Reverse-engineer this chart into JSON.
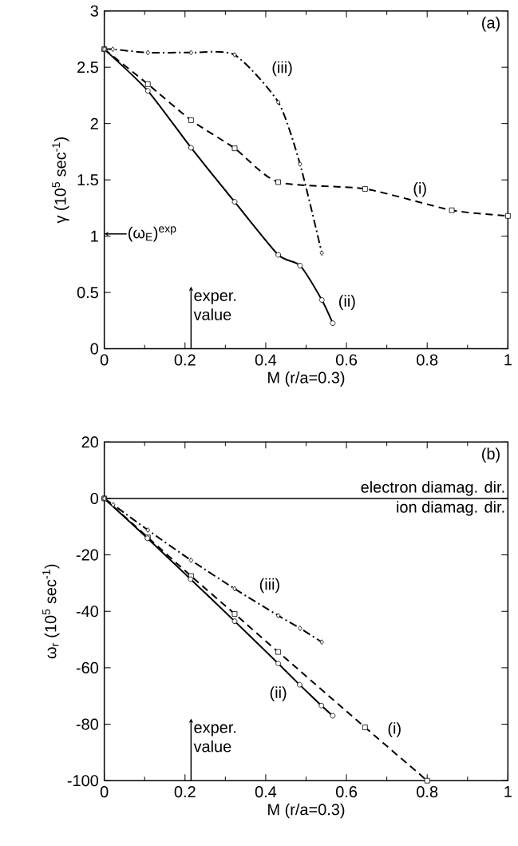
{
  "chart_data": [
    {
      "type": "line",
      "xlabel": "M (r/a=0.3)",
      "ylabel": "γ (10$^{5}$ sec$^{-1}$)",
      "xlim": [
        0,
        1
      ],
      "ylim": [
        0,
        3
      ],
      "xticks": [
        0,
        0.2,
        0.4,
        0.6,
        0.8,
        1
      ],
      "yticks": [
        0,
        0.5,
        1,
        1.5,
        2,
        2.5,
        3
      ],
      "series": [
        {
          "name": "(i)",
          "color": "#000000",
          "line_style": "dashed",
          "marker": "square",
          "x": [
            0,
            0.108,
            0.215,
            0.323,
            0.431,
            0.646,
            0.861,
            1.0
          ],
          "values": [
            2.66,
            2.35,
            2.03,
            1.78,
            1.48,
            1.42,
            1.23,
            1.18
          ]
        },
        {
          "name": "(ii)",
          "color": "#000000",
          "line_style": "solid",
          "marker": "circle",
          "x": [
            0,
            0.108,
            0.215,
            0.323,
            0.431,
            0.485,
            0.539,
            0.566
          ],
          "values": [
            2.66,
            2.29,
            1.785,
            1.305,
            0.834,
            0.739,
            0.434,
            0.227
          ]
        },
        {
          "name": "(iii)",
          "color": "#000000",
          "line_style": "dashdot",
          "marker": "diamond",
          "x": [
            0,
            0.021,
            0.108,
            0.215,
            0.323,
            0.431,
            0.485,
            0.539
          ],
          "values": [
            2.66,
            2.66,
            2.63,
            2.63,
            2.61,
            2.19,
            1.64,
            0.85
          ]
        }
      ],
      "annotations": [
        "(a)",
        "(ω$_{E}$)$^{exp}$",
        "exper. value"
      ]
    },
    {
      "type": "line",
      "xlabel": "M (r/a=0.3)",
      "ylabel": "ω$_{r}$ (10$^{5}$ sec$^{-1}$)",
      "xlim": [
        0,
        1
      ],
      "ylim": [
        -100,
        20
      ],
      "xticks": [
        0,
        0.2,
        0.4,
        0.6,
        0.8,
        1
      ],
      "yticks": [
        -100,
        -80,
        -60,
        -40,
        -20,
        0,
        20
      ],
      "series": [
        {
          "name": "(i)",
          "color": "#000000",
          "line_style": "dashed",
          "marker": "square",
          "x": [
            0,
            0.108,
            0.215,
            0.323,
            0.431,
            0.646,
            0.8
          ],
          "values": [
            0,
            -13.8,
            -27.5,
            -40.9,
            -54.4,
            -81.1,
            -100
          ]
        },
        {
          "name": "(ii)",
          "color": "#000000",
          "line_style": "solid",
          "marker": "circle",
          "x": [
            0,
            0.107,
            0.214,
            0.323,
            0.431,
            0.484,
            0.538,
            0.566
          ],
          "values": [
            0,
            -14.1,
            -28.6,
            -43.5,
            -58.5,
            -66.0,
            -73.4,
            -77.0
          ]
        },
        {
          "name": "(iii)",
          "color": "#000000",
          "line_style": "dashdot",
          "marker": "diamond",
          "x": [
            0,
            0.022,
            0.108,
            0.215,
            0.323,
            0.431,
            0.485,
            0.539
          ],
          "values": [
            0,
            -2.2,
            -11.2,
            -21.9,
            -32.0,
            -41.5,
            -46.0,
            -50.9
          ]
        }
      ],
      "ref_lines": [
        {
          "axis": "y",
          "value": 0,
          "label": "electron diamag. dir.",
          "color": "#000000",
          "line_style": "solid"
        }
      ],
      "annotations": [
        "(b)",
        "ion diamag. dir.",
        "exper. value"
      ]
    }
  ]
}
